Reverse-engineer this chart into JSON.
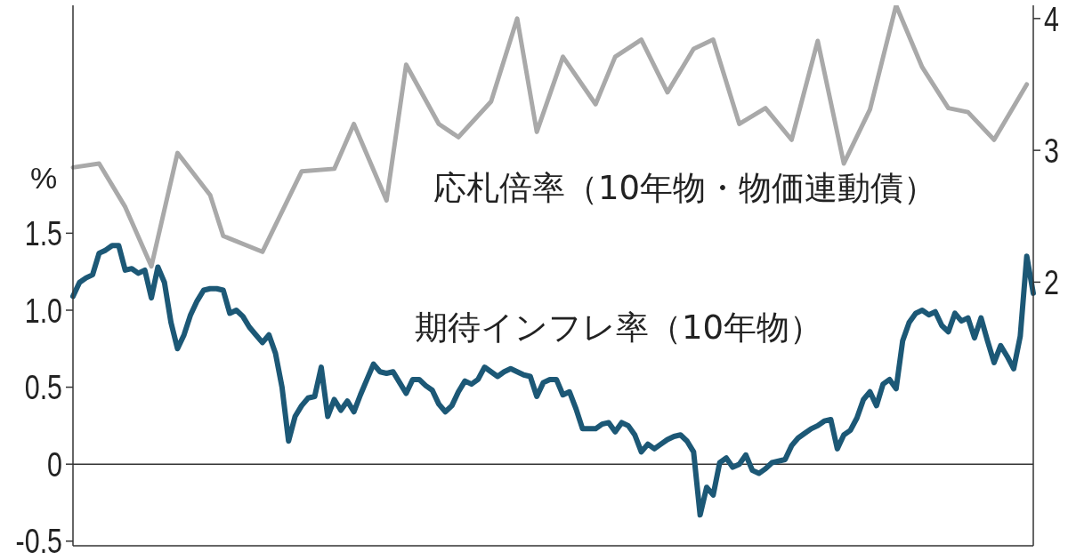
{
  "chart_data": {
    "type": "line",
    "ylabel": "%",
    "categories": [
      null,
      null,
      null,
      null,
      null,
      null,
      null,
      null,
      null,
      null,
      null,
      null,
      null,
      null,
      null,
      null,
      null,
      null,
      null,
      null,
      null,
      null,
      null,
      null,
      null,
      null,
      null,
      null,
      null,
      null,
      null,
      null,
      null,
      null,
      null,
      null,
      null,
      null,
      null,
      null,
      null,
      null,
      null,
      null,
      null,
      null,
      null,
      null,
      null,
      null,
      null,
      null,
      null,
      null,
      null,
      null,
      null,
      null,
      null,
      null,
      null,
      null,
      null,
      null,
      null,
      null,
      null,
      null,
      null,
      null,
      null,
      null,
      null,
      null,
      null,
      null,
      null,
      null,
      null,
      null,
      null,
      null,
      null,
      null,
      null,
      null,
      null,
      null,
      null,
      null,
      null,
      null,
      null,
      null,
      null,
      null,
      null,
      null,
      null,
      null,
      null,
      null,
      null,
      null,
      null,
      null,
      null,
      null,
      null,
      null,
      null,
      null,
      null,
      null,
      null,
      null,
      null,
      null,
      null,
      null,
      null,
      null,
      null,
      null,
      null,
      null,
      null,
      null,
      null,
      null,
      null,
      null,
      null,
      null,
      null,
      null,
      null,
      null,
      null,
      null,
      null,
      null,
      null,
      null,
      null,
      null,
      null,
      null
    ],
    "series": [
      {
        "name": "期待インフレ率（10年物）",
        "color": "#1c5876",
        "values": [
          1.09,
          1.18,
          1.21,
          1.23,
          1.37,
          1.39,
          1.42,
          1.42,
          1.26,
          1.27,
          1.24,
          1.26,
          1.08,
          1.28,
          1.18,
          0.92,
          0.75,
          0.84,
          0.97,
          1.06,
          1.13,
          1.14,
          1.14,
          1.13,
          0.98,
          1.0,
          0.96,
          0.89,
          0.84,
          0.79,
          0.84,
          0.72,
          0.5,
          0.15,
          0.31,
          0.38,
          0.43,
          0.44,
          0.63,
          0.31,
          0.42,
          0.35,
          0.41,
          0.34,
          0.45,
          0.55,
          0.65,
          0.6,
          0.59,
          0.6,
          0.53,
          0.46,
          0.55,
          0.55,
          0.51,
          0.48,
          0.39,
          0.34,
          0.38,
          0.47,
          0.54,
          0.52,
          0.55,
          0.63,
          0.6,
          0.57,
          0.6,
          0.62,
          0.6,
          0.58,
          0.57,
          0.44,
          0.53,
          0.55,
          0.55,
          0.45,
          0.47,
          0.36,
          0.23,
          0.23,
          0.23,
          0.26,
          0.27,
          0.21,
          0.27,
          0.25,
          0.19,
          0.08,
          0.13,
          0.1,
          0.13,
          0.16,
          0.18,
          0.19,
          0.15,
          0.08,
          -0.33,
          -0.15,
          -0.2,
          0.01,
          0.04,
          -0.02,
          0.0,
          0.06,
          -0.04,
          -0.06,
          -0.03,
          0.01,
          0.02,
          0.03,
          0.12,
          0.17,
          0.2,
          0.23,
          0.25,
          0.28,
          0.29,
          0.1,
          0.19,
          0.22,
          0.3,
          0.42,
          0.47,
          0.38,
          0.52,
          0.55,
          0.49,
          0.8,
          0.92,
          0.98,
          1.0,
          0.97,
          0.99,
          0.9,
          0.86,
          0.98,
          0.93,
          0.95,
          0.82,
          0.95,
          0.8,
          0.66,
          0.77,
          0.7,
          0.62,
          0.83,
          1.35,
          1.11
        ]
      },
      {
        "name": "応札倍率（10年物・物価連動債）",
        "color": "#a9a9a9",
        "axis": "y2",
        "values": [
          2.87,
          null,
          null,
          null,
          2.9,
          null,
          null,
          null,
          2.57,
          null,
          null,
          null,
          2.12,
          null,
          null,
          null,
          2.98,
          null,
          null,
          null,
          null,
          2.66,
          null,
          2.35,
          null,
          null,
          null,
          null,
          null,
          2.23,
          null,
          null,
          null,
          null,
          null,
          2.84,
          null,
          null,
          null,
          null,
          2.86,
          null,
          null,
          3.2,
          null,
          null,
          null,
          null,
          2.62,
          null,
          null,
          3.65,
          null,
          null,
          null,
          null,
          3.2,
          null,
          null,
          3.1,
          null,
          null,
          null,
          null,
          3.37,
          null,
          null,
          null,
          4.0,
          null,
          null,
          3.14,
          null,
          null,
          null,
          3.71,
          null,
          null,
          null,
          null,
          3.35,
          null,
          null,
          3.71,
          null,
          null,
          null,
          3.84,
          null,
          null,
          null,
          3.44,
          null,
          null,
          null,
          3.77,
          null,
          null,
          3.84,
          null,
          null,
          null,
          3.2,
          null,
          null,
          null,
          3.32,
          null,
          null,
          null,
          3.08,
          null,
          null,
          null,
          3.83,
          null,
          null,
          null,
          2.9,
          null,
          null,
          null,
          3.31,
          null,
          null,
          null,
          4.1,
          null,
          null,
          null,
          3.63,
          null,
          null,
          null,
          3.32,
          null,
          null,
          3.29,
          null,
          null,
          null,
          3.08,
          null,
          null,
          null,
          null,
          3.5,
          null
        ]
      }
    ],
    "ylim": [
      -0.53,
      2.98
    ],
    "yticks": [
      -0.5,
      0,
      0.5,
      {
        "value": 1,
        "label": "1.0"
      },
      1.5
    ],
    "y2lim": [
      0,
      4.1
    ],
    "y2ticks": [
      2,
      3,
      4
    ],
    "ref_lines": [
      {
        "axis": "y",
        "value": 0,
        "color": "#333333"
      }
    ],
    "marker": "none"
  }
}
